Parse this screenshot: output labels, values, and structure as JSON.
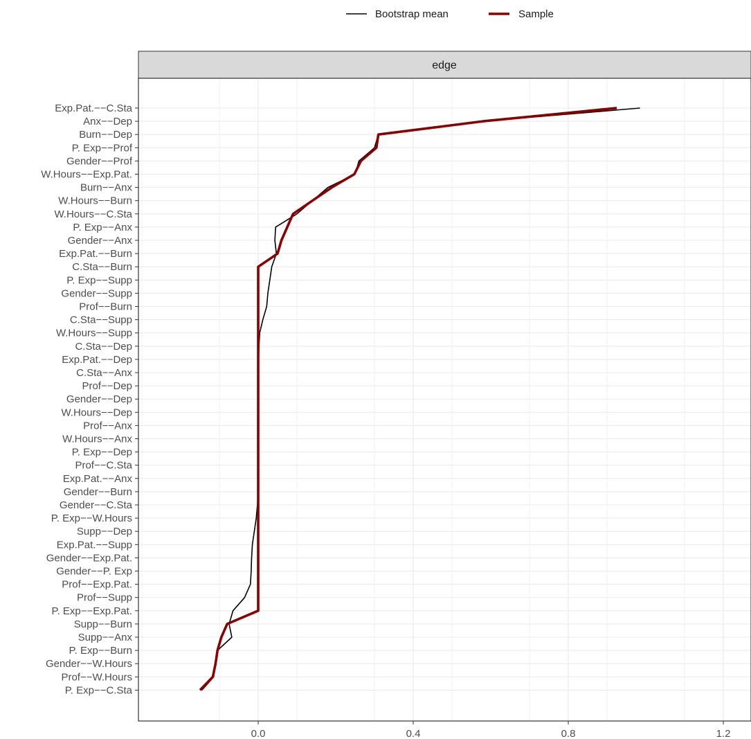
{
  "chart_data": {
    "type": "line",
    "legend": {
      "position": "top",
      "entries": [
        {
          "label": "Bootstrap mean",
          "color": "#000000"
        },
        {
          "label": "Sample",
          "color": "#8B0000"
        }
      ]
    },
    "panel_title": "edge",
    "grid": true,
    "xlim": [
      -0.3,
      1.27
    ],
    "x_ticks": [
      0.0,
      0.4,
      0.8,
      1.2
    ],
    "x_tick_labels": [
      "0.0",
      "0.4",
      "0.8",
      "1.2"
    ],
    "categories": [
      "Exp.Pat.--C.Sta",
      "Anx--Dep",
      "Burn--Dep",
      "P. Exp--Prof",
      "Gender--Prof",
      "W.Hours--Exp.Pat.",
      "Burn--Anx",
      "W.Hours--Burn",
      "W.Hours--C.Sta",
      "P. Exp--Anx",
      "Gender--Anx",
      "Exp.Pat.--Burn",
      "C.Sta--Burn",
      "P. Exp--Supp",
      "Gender--Supp",
      "Prof--Burn",
      "C.Sta--Supp",
      "W.Hours--Supp",
      "C.Sta--Dep",
      "Exp.Pat.--Dep",
      "C.Sta--Anx",
      "Prof--Dep",
      "Gender--Dep",
      "W.Hours--Dep",
      "Prof--Anx",
      "W.Hours--Anx",
      "P. Exp--Dep",
      "Prof--C.Sta",
      "Exp.Pat.--Anx",
      "Gender--Burn",
      "Gender--C.Sta",
      "P. Exp--W.Hours",
      "Supp--Dep",
      "Exp.Pat.--Supp",
      "Gender--Exp.Pat.",
      "Gender--P. Exp",
      "Prof--Exp.Pat.",
      "Prof--Supp",
      "P. Exp--Exp.Pat.",
      "Supp--Burn",
      "Supp--Anx",
      "P. Exp--Burn",
      "Gender--W.Hours",
      "Prof--W.Hours",
      "P. Exp--C.Sta"
    ],
    "series": [
      {
        "name": "Bootstrap mean",
        "color": "#000000",
        "values": [
          0.985,
          0.58,
          0.31,
          0.3,
          0.26,
          0.25,
          0.18,
          0.14,
          0.1,
          0.045,
          0.043,
          0.047,
          0.035,
          0.03,
          0.025,
          0.022,
          0.012,
          0.004,
          0.002,
          0.001,
          0.0,
          0.0,
          0.0,
          0.0,
          0.0,
          0.0,
          0.0,
          0.0,
          0.0,
          0.0,
          -0.002,
          -0.005,
          -0.01,
          -0.015,
          -0.017,
          -0.018,
          -0.02,
          -0.035,
          -0.065,
          -0.075,
          -0.068,
          -0.105,
          -0.11,
          -0.115,
          -0.145
        ]
      },
      {
        "name": "Sample",
        "color": "#8B0000",
        "values": [
          0.925,
          0.58,
          0.31,
          0.305,
          0.265,
          0.248,
          0.19,
          0.14,
          0.09,
          0.075,
          0.06,
          0.05,
          0.0,
          0.0,
          0.0,
          0.0,
          0.0,
          0.0,
          0.0,
          0.0,
          0.0,
          0.0,
          0.0,
          0.0,
          0.0,
          0.0,
          0.0,
          0.0,
          0.0,
          0.0,
          0.0,
          0.0,
          0.0,
          0.0,
          0.0,
          0.0,
          0.0,
          0.0,
          0.0,
          -0.08,
          -0.095,
          -0.105,
          -0.11,
          -0.117,
          -0.15
        ]
      }
    ]
  }
}
